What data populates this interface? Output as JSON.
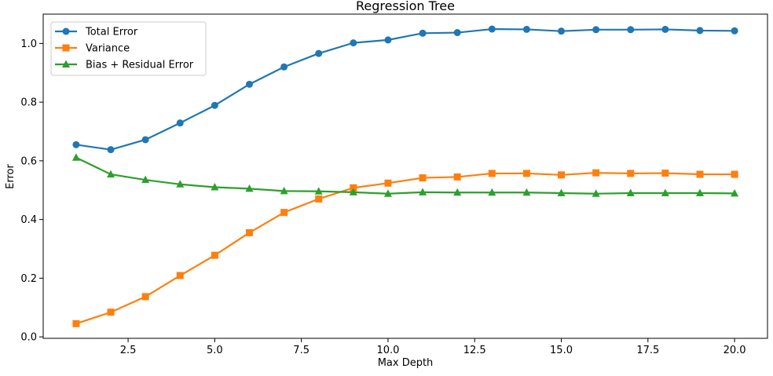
{
  "chart_data": {
    "type": "line",
    "title": "Regression Tree",
    "xlabel": "Max Depth",
    "ylabel": "Error",
    "xlim": [
      0.05,
      20.95
    ],
    "ylim": [
      -0.005,
      1.1
    ],
    "xticks": [
      2.5,
      5.0,
      7.5,
      10.0,
      12.5,
      15.0,
      17.5,
      20.0
    ],
    "xtick_labels": [
      "2.5",
      "5.0",
      "7.5",
      "10.0",
      "12.5",
      "15.0",
      "17.5",
      "20.0"
    ],
    "yticks": [
      0.0,
      0.2,
      0.4,
      0.6,
      0.8,
      1.0
    ],
    "ytick_labels": [
      "0.0",
      "0.2",
      "0.4",
      "0.6",
      "0.8",
      "1.0"
    ],
    "grid": false,
    "legend_position": "upper-left",
    "x": [
      1,
      2,
      3,
      4,
      5,
      6,
      7,
      8,
      9,
      10,
      11,
      12,
      13,
      14,
      15,
      16,
      17,
      18,
      19,
      20
    ],
    "series": [
      {
        "name": "Total Error",
        "color": "#1f77b4",
        "marker": "circle",
        "values": [
          0.655,
          0.638,
          0.672,
          0.729,
          0.789,
          0.861,
          0.92,
          0.966,
          1.002,
          1.012,
          1.035,
          1.037,
          1.049,
          1.048,
          1.042,
          1.047,
          1.047,
          1.048,
          1.044,
          1.043
        ]
      },
      {
        "name": "Variance",
        "color": "#ff7f0e",
        "marker": "square",
        "values": [
          0.045,
          0.084,
          0.137,
          0.209,
          0.278,
          0.355,
          0.424,
          0.47,
          0.508,
          0.524,
          0.542,
          0.545,
          0.557,
          0.557,
          0.552,
          0.559,
          0.557,
          0.558,
          0.554,
          0.554
        ]
      },
      {
        "name": "Bias + Residual Error",
        "color": "#2ca02c",
        "marker": "triangle",
        "values": [
          0.611,
          0.554,
          0.535,
          0.52,
          0.51,
          0.505,
          0.497,
          0.496,
          0.493,
          0.488,
          0.493,
          0.492,
          0.492,
          0.492,
          0.49,
          0.488,
          0.49,
          0.49,
          0.49,
          0.489
        ]
      }
    ]
  }
}
